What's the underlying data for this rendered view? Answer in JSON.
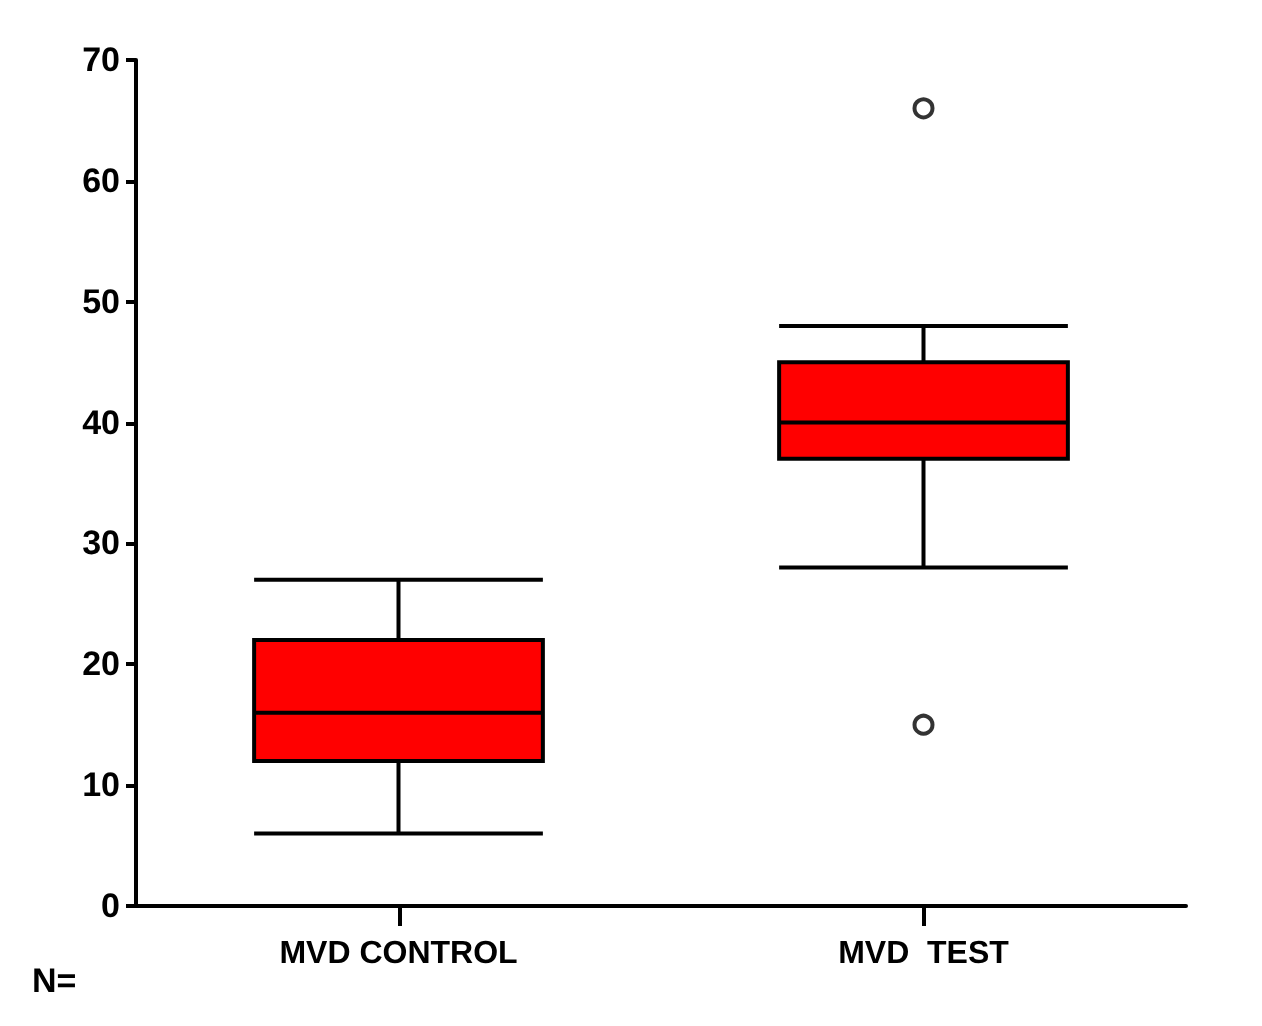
{
  "chart_data": {
    "type": "box",
    "categories": [
      "MVD CONTROL",
      "MVD  TEST"
    ],
    "boxes": [
      {
        "low": 6,
        "q1": 12,
        "median": 16,
        "q3": 22,
        "high": 27
      },
      {
        "low": 28,
        "q1": 37,
        "median": 40,
        "q3": 45,
        "high": 48,
        "outliers": [
          66,
          15
        ]
      }
    ],
    "color": "#ff0000",
    "ylim": [
      0,
      70
    ],
    "yticks": [
      0,
      10,
      20,
      30,
      40,
      50,
      60,
      70
    ],
    "grid": false,
    "annotations": [
      "N="
    ]
  }
}
